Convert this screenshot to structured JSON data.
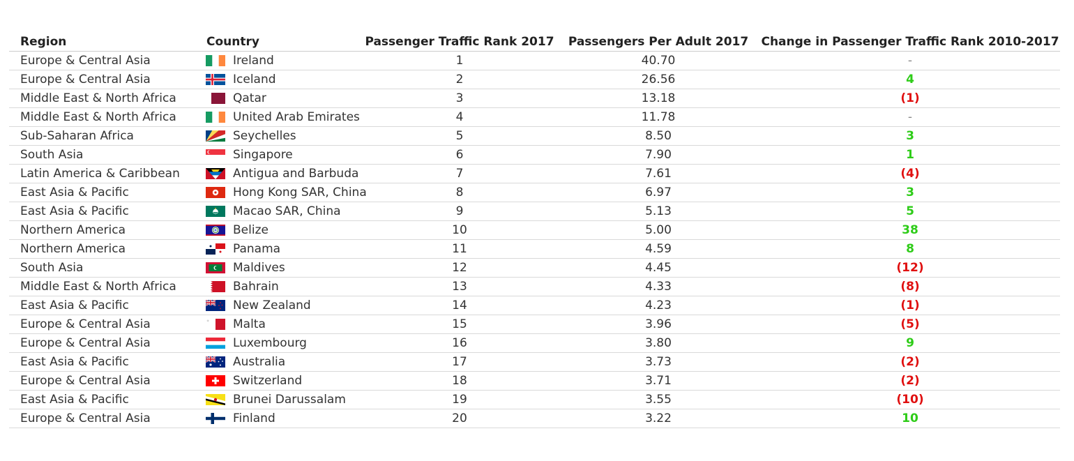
{
  "table": {
    "columns": [
      "Region",
      "Country",
      "Passenger Traffic Rank 2017",
      "Passengers Per Adult 2017",
      "Change in Passenger Traffic Rank 2010-2017"
    ],
    "colors": {
      "positive": "#2ecc18",
      "negative": "#e01010",
      "neutral": "#888888"
    },
    "rows": [
      {
        "region": "Europe & Central Asia",
        "country": "Ireland",
        "flag": "ireland-flag-icon",
        "rank": "1",
        "ppa": "40.70",
        "change": "-"
      },
      {
        "region": "Europe & Central Asia",
        "country": "Iceland",
        "flag": "iceland-flag-icon",
        "rank": "2",
        "ppa": "26.56",
        "change": "4"
      },
      {
        "region": "Middle East & North Africa",
        "country": "Qatar",
        "flag": "qatar-flag-icon",
        "rank": "3",
        "ppa": "13.18",
        "change": "(1)"
      },
      {
        "region": "Middle East & North Africa",
        "country": "United Arab Emirates",
        "flag": "uae-flag-icon",
        "rank": "4",
        "ppa": "11.78",
        "change": "-"
      },
      {
        "region": "Sub-Saharan Africa",
        "country": "Seychelles",
        "flag": "seychelles-flag-icon",
        "rank": "5",
        "ppa": "8.50",
        "change": "3"
      },
      {
        "region": "South Asia",
        "country": "Singapore",
        "flag": "singapore-flag-icon",
        "rank": "6",
        "ppa": "7.90",
        "change": "1"
      },
      {
        "region": "Latin America & Caribbean",
        "country": "Antigua and Barbuda",
        "flag": "antigua-flag-icon",
        "rank": "7",
        "ppa": "7.61",
        "change": "(4)"
      },
      {
        "region": "East Asia & Pacific",
        "country": "Hong Kong SAR, China",
        "flag": "hong-kong-flag-icon",
        "rank": "8",
        "ppa": "6.97",
        "change": "3"
      },
      {
        "region": "East Asia & Pacific",
        "country": "Macao SAR, China",
        "flag": "macao-flag-icon",
        "rank": "9",
        "ppa": "5.13",
        "change": "5"
      },
      {
        "region": "Northern America",
        "country": "Belize",
        "flag": "belize-flag-icon",
        "rank": "10",
        "ppa": "5.00",
        "change": "38"
      },
      {
        "region": "Northern America",
        "country": "Panama",
        "flag": "panama-flag-icon",
        "rank": "11",
        "ppa": "4.59",
        "change": "8"
      },
      {
        "region": "South Asia",
        "country": "Maldives",
        "flag": "maldives-flag-icon",
        "rank": "12",
        "ppa": "4.45",
        "change": "(12)"
      },
      {
        "region": "Middle East & North Africa",
        "country": "Bahrain",
        "flag": "bahrain-flag-icon",
        "rank": "13",
        "ppa": "4.33",
        "change": "(8)"
      },
      {
        "region": "East Asia & Pacific",
        "country": "New Zealand",
        "flag": "new-zealand-flag-icon",
        "rank": "14",
        "ppa": "4.23",
        "change": "(1)"
      },
      {
        "region": "Europe & Central Asia",
        "country": "Malta",
        "flag": "malta-flag-icon",
        "rank": "15",
        "ppa": "3.96",
        "change": "(5)"
      },
      {
        "region": "Europe & Central Asia",
        "country": "Luxembourg",
        "flag": "luxembourg-flag-icon",
        "rank": "16",
        "ppa": "3.80",
        "change": "9"
      },
      {
        "region": "East Asia & Pacific",
        "country": "Australia",
        "flag": "australia-flag-icon",
        "rank": "17",
        "ppa": "3.73",
        "change": "(2)"
      },
      {
        "region": "Europe & Central Asia",
        "country": "Switzerland",
        "flag": "switzerland-flag-icon",
        "rank": "18",
        "ppa": "3.71",
        "change": "(2)"
      },
      {
        "region": "East Asia & Pacific",
        "country": "Brunei Darussalam",
        "flag": "brunei-flag-icon",
        "rank": "19",
        "ppa": "3.55",
        "change": "(10)"
      },
      {
        "region": "Europe & Central Asia",
        "country": "Finland",
        "flag": "finland-flag-icon",
        "rank": "20",
        "ppa": "3.22",
        "change": "10"
      }
    ]
  },
  "chart_data": {
    "type": "table",
    "columns": [
      "Region",
      "Country",
      "Passenger Traffic Rank 2017",
      "Passengers Per Adult 2017",
      "Change in Passenger Traffic Rank 2010-2017"
    ],
    "rows": [
      [
        "Europe & Central Asia",
        "Ireland",
        1,
        40.7,
        "-"
      ],
      [
        "Europe & Central Asia",
        "Iceland",
        2,
        26.56,
        "4"
      ],
      [
        "Middle East & North Africa",
        "Qatar",
        3,
        13.18,
        "(1)"
      ],
      [
        "Middle East & North Africa",
        "United Arab Emirates",
        4,
        11.78,
        "-"
      ],
      [
        "Sub-Saharan Africa",
        "Seychelles",
        5,
        8.5,
        "3"
      ],
      [
        "South Asia",
        "Singapore",
        6,
        7.9,
        "1"
      ],
      [
        "Latin America & Caribbean",
        "Antigua and Barbuda",
        7,
        7.61,
        "(4)"
      ],
      [
        "East Asia & Pacific",
        "Hong Kong SAR, China",
        8,
        6.97,
        "3"
      ],
      [
        "East Asia & Pacific",
        "Macao SAR, China",
        9,
        5.13,
        "5"
      ],
      [
        "Northern America",
        "Belize",
        10,
        5.0,
        "38"
      ],
      [
        "Northern America",
        "Panama",
        11,
        4.59,
        "8"
      ],
      [
        "South Asia",
        "Maldives",
        12,
        4.45,
        "(12)"
      ],
      [
        "Middle East & North Africa",
        "Bahrain",
        13,
        4.33,
        "(8)"
      ],
      [
        "East Asia & Pacific",
        "New Zealand",
        14,
        4.23,
        "(1)"
      ],
      [
        "Europe & Central Asia",
        "Malta",
        15,
        3.96,
        "(5)"
      ],
      [
        "Europe & Central Asia",
        "Luxembourg",
        16,
        3.8,
        "9"
      ],
      [
        "East Asia & Pacific",
        "Australia",
        17,
        3.73,
        "(2)"
      ],
      [
        "Europe & Central Asia",
        "Switzerland",
        18,
        3.71,
        "(2)"
      ],
      [
        "East Asia & Pacific",
        "Brunei Darussalam",
        19,
        3.55,
        "(10)"
      ],
      [
        "Europe & Central Asia",
        "Finland",
        20,
        3.22,
        "10"
      ]
    ]
  }
}
